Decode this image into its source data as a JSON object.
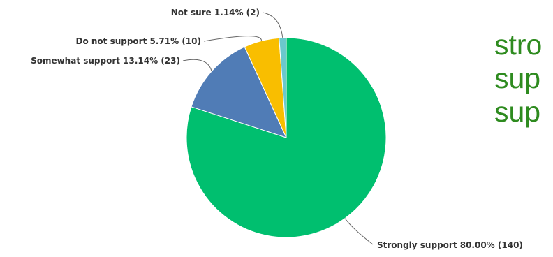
{
  "side_text": [
    "stro",
    "sup",
    "sup"
  ],
  "chart_data": {
    "type": "pie",
    "slices": [
      {
        "label": "Strongly support",
        "value": 140,
        "percent": 80.0,
        "color": "#00bf6f"
      },
      {
        "label": "Somewhat support",
        "value": 23,
        "percent": 13.14,
        "color": "#507cb6"
      },
      {
        "label": "Do not support",
        "value": 10,
        "percent": 5.71,
        "color": "#f9be00"
      },
      {
        "label": "Not sure",
        "value": 2,
        "percent": 1.14,
        "color": "#6bc8cd"
      }
    ],
    "data_labels": [
      "Strongly support 80.00% (140)",
      "Somewhat support 13.14% (23)",
      "Do not support 5.71% (10)",
      "Not sure 1.14% (2)"
    ]
  }
}
